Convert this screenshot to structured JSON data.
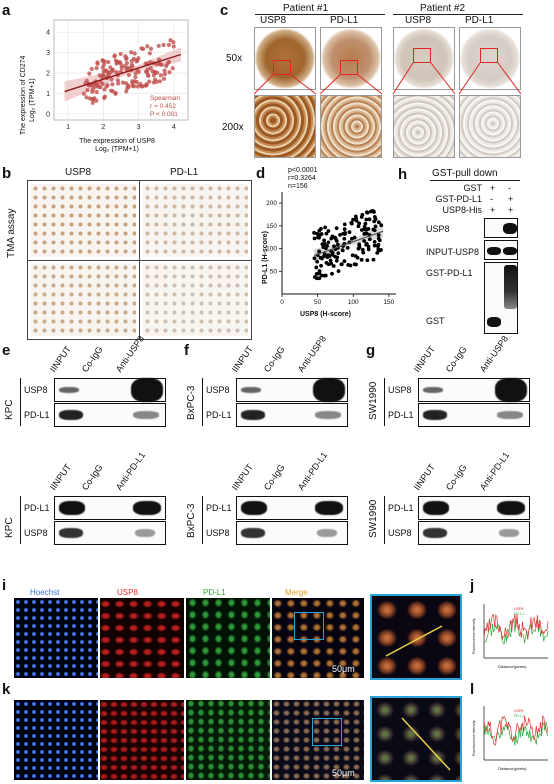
{
  "panels": {
    "a": "a",
    "b": "b",
    "c": "c",
    "d": "d",
    "e": "e",
    "f": "f",
    "g": "g",
    "h": "h",
    "i": "i",
    "j": "j",
    "k": "k",
    "l": "l"
  },
  "panel_a": {
    "ylabel_line1": "The expression of CD274",
    "ylabel_line2": "Log₂ (TPM+1)",
    "xlabel_line1": "The expression of USP8",
    "xlabel_line2": "Log₂ (TPM+1)",
    "stat_method": "Spearman",
    "stat_r": "r = 0.452",
    "stat_p": "P < 0.001",
    "point_color": "#c0504d",
    "xticks": [
      "1",
      "2",
      "3",
      "4"
    ],
    "yticks": [
      "0",
      "1",
      "2",
      "3",
      "4"
    ]
  },
  "panel_b": {
    "col1": "USP8",
    "col2": "PD-L1",
    "side_label": "TMA assay"
  },
  "panel_c": {
    "patient1": "Patient #1",
    "patient2": "Patient #2",
    "col_usp8": "USP8",
    "col_pdl1": "PD-L1",
    "mag_low": "50x",
    "mag_high": "200x"
  },
  "panel_d": {
    "stat_p": "p<0.0001",
    "stat_r": "r=0.3264",
    "stat_n": "n=156",
    "ylabel": "PD-L1 (H-score)",
    "xlabel": "USP8 (H-score)",
    "xticks": [
      "0",
      "50",
      "100",
      "150"
    ],
    "yticks": [
      "50",
      "100",
      "150",
      "200"
    ]
  },
  "panel_h": {
    "title": "GST-pull down",
    "row1_label": "GST",
    "row1_vals": [
      "+",
      "-"
    ],
    "row2_label": "GST-PD-L1",
    "row2_vals": [
      "-",
      "+"
    ],
    "row3_label": "USP8-His",
    "row3_vals": [
      "+",
      "+"
    ],
    "blot1": "USP8",
    "blot2": "INPUT-USP8",
    "blot3": "GST-PD-L1",
    "blot4": "GST"
  },
  "wb": {
    "lanes_usp8": [
      "IINPUT",
      "Co-IgG",
      "Anti-USP8"
    ],
    "lanes_pdl1": [
      "IINPUT",
      "Co-IgG",
      "Anti-PD-L1"
    ],
    "protein_usp8": "USP8",
    "protein_pdl1": "PD-L1",
    "cell_e": "KPC",
    "cell_f": "BxPC-3",
    "cell_g": "SW1990"
  },
  "fluor": {
    "hoechst": "Hoechst",
    "usp8": "USP8",
    "pdl1": "PD-L1",
    "merge": "Merge",
    "scale": "50μm",
    "hoechst_color": "#3a6fd8",
    "usp8_color": "#e03030",
    "pdl1_color": "#2eaa3a",
    "merge_color": "#e0a020",
    "zoom_color": "#29a3d6"
  },
  "panel_j": {
    "ylabel": "Fluorescence intensity",
    "xlabel": "Distance(pixels)",
    "legend1": "USP8",
    "legend2": "PD-L1"
  },
  "panel_l": {
    "ylabel": "Fluorescence intensity",
    "xlabel": "Distance(pixels)",
    "legend1": "USP8",
    "legend2": "PD-L1"
  }
}
